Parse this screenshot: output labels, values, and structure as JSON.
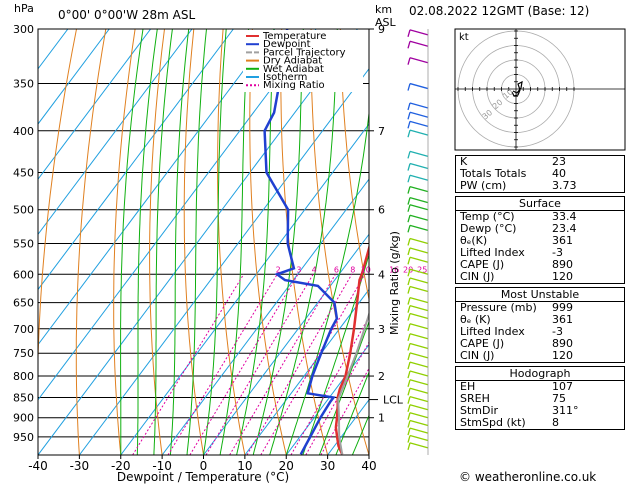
{
  "header": {
    "location": "0°00' 0°00'W 28m ASL",
    "datetime": "02.08.2022 12GMT (Base: 12)",
    "hpa_label": "hPa",
    "km_label": "km",
    "asl_label": "ASL",
    "credit": "© weatheronline.co.uk"
  },
  "chart_data": {
    "type": "line",
    "subtype": "skew-t log-p diagram",
    "xlabel": "Dewpoint / Temperature (°C)",
    "ylabel": "",
    "mixing_ratio_axis_label": "Mixing Ratio (g/kg)",
    "xlim": [
      -40,
      40
    ],
    "x_ticks": [
      -40,
      -30,
      -20,
      -10,
      0,
      10,
      20,
      30,
      40
    ],
    "pressure_levels": [
      300,
      350,
      400,
      450,
      500,
      550,
      600,
      650,
      700,
      750,
      800,
      850,
      900,
      950
    ],
    "km_ticks": [
      {
        "p": 300,
        "label": "9"
      },
      {
        "p": 400,
        "label": "7"
      },
      {
        "p": 500,
        "label": "6"
      },
      {
        "p": 600,
        "label": "4"
      },
      {
        "p": 700,
        "label": "3"
      },
      {
        "p": 800,
        "label": "2"
      },
      {
        "p": 900,
        "label": "1"
      }
    ],
    "lcl": {
      "p": 855,
      "label": "LCL"
    },
    "mixing_ratio_labels": [
      "2",
      "3",
      "4",
      "6",
      "8",
      "10",
      "16",
      "20",
      "25"
    ],
    "legend": [
      "Temperature",
      "Dewpoint",
      "Parcel Trajectory",
      "Dry Adiabat",
      "Wet Adiabat",
      "Isotherm",
      "Mixing Ratio"
    ],
    "legend_colors": [
      "#e03030",
      "#2040d0",
      "#a0a0a0",
      "#e08020",
      "#10b010",
      "#20a0e0",
      "#e000a0"
    ],
    "series": [
      {
        "name": "Temperature",
        "color": "#e03030",
        "points": [
          [
            998,
            33.4
          ],
          [
            975,
            31
          ],
          [
            950,
            29
          ],
          [
            925,
            27
          ],
          [
            900,
            25.5
          ],
          [
            870,
            23.5
          ],
          [
            850,
            22
          ],
          [
            830,
            21
          ],
          [
            800,
            20
          ],
          [
            750,
            17
          ],
          [
            700,
            13.5
          ],
          [
            650,
            9.5
          ],
          [
            610,
            6
          ],
          [
            600,
            5.5
          ],
          [
            550,
            2
          ],
          [
            500,
            -3
          ],
          [
            450,
            -9
          ],
          [
            400,
            -17
          ],
          [
            380,
            -20
          ],
          [
            350,
            -25
          ]
        ]
      },
      {
        "name": "Dewpoint",
        "color": "#2040d0",
        "points": [
          [
            998,
            23.4
          ],
          [
            950,
            22.5
          ],
          [
            900,
            21.5
          ],
          [
            860,
            21
          ],
          [
            850,
            21
          ],
          [
            840,
            14
          ],
          [
            800,
            12
          ],
          [
            750,
            10
          ],
          [
            700,
            8
          ],
          [
            680,
            7.5
          ],
          [
            650,
            4
          ],
          [
            620,
            -3
          ],
          [
            610,
            -12
          ],
          [
            600,
            -15
          ],
          [
            590,
            -12
          ],
          [
            550,
            -18
          ],
          [
            500,
            -24
          ],
          [
            450,
            -36
          ],
          [
            400,
            -44
          ],
          [
            380,
            -45
          ],
          [
            350,
            -49
          ],
          [
            300,
            -57
          ]
        ]
      },
      {
        "name": "Parcel Trajectory",
        "color": "#a0a0a0",
        "points": [
          [
            998,
            33.4
          ],
          [
            950,
            29.5
          ],
          [
            900,
            26
          ],
          [
            855,
            22.5
          ],
          [
            800,
            20.5
          ],
          [
            750,
            18.5
          ],
          [
            700,
            16
          ],
          [
            650,
            13.3
          ],
          [
            600,
            10.5
          ],
          [
            550,
            7
          ],
          [
            500,
            3
          ],
          [
            450,
            -2
          ],
          [
            400,
            -8
          ],
          [
            350,
            -15
          ],
          [
            300,
            -23
          ]
        ]
      }
    ],
    "hodograph": {
      "rings": 4,
      "label": "kt",
      "ring_labels": [
        "10",
        "20",
        "30"
      ]
    },
    "wind_profile_colors": [
      "#a000a0",
      "#2060e0",
      "#20b0b0",
      "#20b020",
      "#90d000"
    ]
  },
  "indices": {
    "rows": [
      {
        "label": "K",
        "value": "23"
      },
      {
        "label": "Totals Totals",
        "value": "40"
      },
      {
        "label": "PW (cm)",
        "value": "3.73"
      }
    ]
  },
  "surface": {
    "title": "Surface",
    "rows": [
      {
        "label": "Temp (°C)",
        "value": "33.4"
      },
      {
        "label": "Dewp (°C)",
        "value": "23.4"
      },
      {
        "label": "θₑ(K)",
        "value": "361"
      },
      {
        "label": "Lifted Index",
        "value": "-3"
      },
      {
        "label": "CAPE (J)",
        "value": "890"
      },
      {
        "label": "CIN (J)",
        "value": "120"
      }
    ]
  },
  "unstable": {
    "title": "Most Unstable",
    "rows": [
      {
        "label": "Pressure (mb)",
        "value": "999"
      },
      {
        "label": "θₑ (K)",
        "value": "361"
      },
      {
        "label": "Lifted Index",
        "value": "-3"
      },
      {
        "label": "CAPE (J)",
        "value": "890"
      },
      {
        "label": "CIN (J)",
        "value": "120"
      }
    ]
  },
  "hodo_table": {
    "title": "Hodograph",
    "rows": [
      {
        "label": "EH",
        "value": "107"
      },
      {
        "label": "SREH",
        "value": "75"
      },
      {
        "label": "StmDir",
        "value": "311°"
      },
      {
        "label": "StmSpd (kt)",
        "value": "8"
      }
    ]
  }
}
